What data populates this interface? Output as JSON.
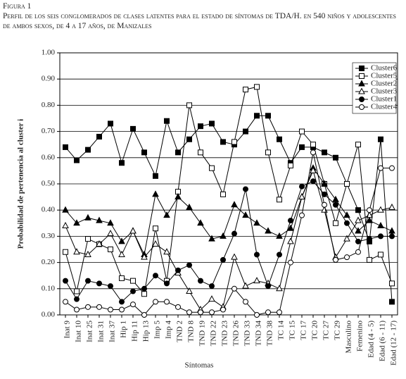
{
  "chart_data": {
    "type": "line",
    "figure_label": "Figura 1",
    "title": "Perfil de los seis conglomerados de clases latentes para el estado de síntomas de TDA/H. en 540 niños y adolescentes de ambos sexos, de 4 a 17 años, de Manizales",
    "xlabel": "Síntomas",
    "ylabel": "Probabilidad de pertenencia al cluster i",
    "categories": [
      "Inat 9",
      "Inat 10",
      "Inat 25",
      "Inat 31",
      "Inat 37",
      "Hip 1",
      "Hip 11",
      "Hip 13",
      "Imp 5",
      "Imp 4",
      "TND 2",
      "TND 8",
      "TND 19",
      "TND 22",
      "TND 23",
      "TND 26",
      "TND 33",
      "TND 34",
      "TND 38",
      "TC 14",
      "TC 15",
      "TC 17",
      "TC 20",
      "TC 27",
      "TC 29",
      "Masculino",
      "Femenino",
      "Edad (4 - 5)",
      "Edad (6 - 11)",
      "Edad (12 - 17)"
    ],
    "ylim": [
      0,
      1
    ],
    "yticks": [
      {
        "value": 0,
        "label": "0.00"
      },
      {
        "value": 0.1,
        "label": "0.10"
      },
      {
        "value": 0.2,
        "label": "0.20"
      },
      {
        "value": 0.3,
        "label": "0.30"
      },
      {
        "value": 0.4,
        "label": "0.40"
      },
      {
        "value": 0.5,
        "label": "0.50"
      },
      {
        "value": 0.6,
        "label": "0.60"
      },
      {
        "value": 0.7,
        "label": "0.70"
      },
      {
        "value": 0.8,
        "label": "0.80"
      },
      {
        "value": 0.9,
        "label": "0.90"
      },
      {
        "value": 1,
        "label": "1.00"
      }
    ],
    "grid": true,
    "legend": "upper-right",
    "series": [
      {
        "name": "Cluster6",
        "color": "#000000",
        "marker": "square",
        "filled": true,
        "values": [
          0.64,
          0.59,
          0.63,
          0.68,
          0.73,
          0.58,
          0.71,
          0.62,
          0.53,
          0.74,
          0.62,
          0.67,
          0.72,
          0.73,
          0.66,
          0.65,
          0.7,
          0.76,
          0.76,
          0.67,
          0.58,
          0.64,
          0.64,
          0.62,
          0.6,
          0.5,
          0.4,
          0.28,
          0.67,
          0.05
        ]
      },
      {
        "name": "Cluster5",
        "color": "#000000",
        "marker": "square",
        "filled": false,
        "values": [
          0.24,
          0.09,
          0.29,
          0.27,
          0.25,
          0.14,
          0.13,
          0.08,
          0.33,
          0.13,
          0.47,
          0.8,
          0.62,
          0.56,
          0.46,
          0.66,
          0.86,
          0.87,
          0.62,
          0.44,
          0.57,
          0.7,
          0.65,
          0.5,
          0.35,
          0.5,
          0.65,
          0.21,
          0.23,
          0.12
        ]
      },
      {
        "name": "Cluster2",
        "color": "#000000",
        "marker": "triangle",
        "filled": true,
        "values": [
          0.4,
          0.35,
          0.37,
          0.36,
          0.35,
          0.28,
          0.32,
          0.23,
          0.46,
          0.38,
          0.45,
          0.41,
          0.35,
          0.29,
          0.3,
          0.42,
          0.38,
          0.35,
          0.32,
          0.3,
          0.33,
          0.45,
          0.56,
          0.5,
          0.44,
          0.38,
          0.32,
          0.36,
          0.34,
          0.32
        ]
      },
      {
        "name": "Cluster3",
        "color": "#000000",
        "marker": "triangle",
        "filled": false,
        "values": [
          0.34,
          0.24,
          0.23,
          0.27,
          0.31,
          0.23,
          0.32,
          0.22,
          0.27,
          0.24,
          0.16,
          0.09,
          0.02,
          0.06,
          0.03,
          0.22,
          0.11,
          0.13,
          0.12,
          0.1,
          0.28,
          0.45,
          0.55,
          0.4,
          0.22,
          0.29,
          0.36,
          0.38,
          0.4,
          0.41
        ]
      },
      {
        "name": "Cluster1",
        "color": "#000000",
        "marker": "circle",
        "filled": true,
        "values": [
          0.13,
          0.06,
          0.13,
          0.12,
          0.11,
          0.05,
          0.09,
          0.1,
          0.15,
          0.12,
          0.17,
          0.19,
          0.13,
          0.11,
          0.21,
          0.31,
          0.48,
          0.23,
          0.11,
          0.23,
          0.36,
          0.49,
          0.51,
          0.46,
          0.42,
          0.35,
          0.28,
          0.29,
          0.3,
          0.3
        ]
      },
      {
        "name": "Cluster4",
        "color": "#000000",
        "marker": "circle",
        "filled": false,
        "values": [
          0.05,
          0.02,
          0.03,
          0.03,
          0.02,
          0.02,
          0.04,
          0.0,
          0.05,
          0.05,
          0.03,
          0.01,
          0.01,
          0.01,
          0.02,
          0.1,
          0.05,
          0.0,
          0.01,
          0.01,
          0.2,
          0.38,
          0.62,
          0.42,
          0.21,
          0.22,
          0.24,
          0.4,
          0.56,
          0.56
        ]
      }
    ]
  }
}
